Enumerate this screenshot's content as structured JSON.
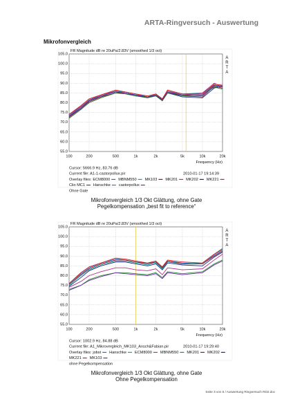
{
  "header": {
    "title": "ARTA-Ringversuch - Auswertung"
  },
  "section": "Mikrofonvergleich",
  "charts": [
    {
      "type": "line",
      "title": "FR Magnitude dB re 20uPa/2.83V (smoothed 1/3 oct)",
      "side_label": "ARTA",
      "xlabel": "Frequency (Hz)",
      "log_x": true,
      "grid": true,
      "xlim": [
        100,
        20000
      ],
      "xticks": [
        100,
        200,
        500,
        {
          "value": 1000,
          "label": "1k"
        },
        {
          "value": 2000,
          "label": "2k"
        },
        {
          "value": 5000,
          "label": "5k"
        },
        {
          "value": 10000,
          "label": "10k"
        },
        {
          "value": 20000,
          "label": "20k"
        }
      ],
      "ylim": [
        55,
        105
      ],
      "yticks": [
        {
          "value": 55,
          "label": "55.0"
        },
        {
          "value": 60,
          "label": "60.0"
        },
        {
          "value": 65,
          "label": "65.0"
        },
        {
          "value": 70,
          "label": "70.0"
        },
        {
          "value": 75,
          "label": "75.0"
        },
        {
          "value": 80,
          "label": "80.0"
        },
        {
          "value": 85,
          "label": "85.0"
        },
        {
          "value": 90,
          "label": "90.0"
        },
        {
          "value": 95,
          "label": "95.0"
        },
        {
          "value": 100,
          "label": "100.0"
        },
        {
          "value": 105,
          "label": "105.0"
        }
      ],
      "cursor": {
        "x": 5666.9,
        "y": 83.76,
        "label": "Cursor: 5666.9 Hz, 83.76 dB",
        "color": "#e8c840"
      },
      "current_file": "Current file: A1-1-castorpollux.pir",
      "timestamp": "2010-01-17  19:14:39",
      "overlay_label": "Overlay files:",
      "note": "Ohne Gate",
      "x": [
        100,
        150,
        200,
        300,
        500,
        700,
        1000,
        1500,
        2000,
        2500,
        3000,
        5000,
        10000,
        15000,
        20000
      ],
      "series": [
        {
          "name": "ECM8000",
          "color": "#2a6dd8",
          "values": [
            74,
            78,
            81,
            83.5,
            85.5,
            85,
            84,
            83,
            84,
            81.5,
            85,
            84,
            84,
            88,
            89
          ]
        },
        {
          "name": "MBNM550",
          "color": "#1aa0a0",
          "values": [
            73,
            77,
            81,
            83,
            86,
            85.5,
            84.5,
            83,
            84.5,
            82,
            86,
            84.5,
            85,
            89,
            88
          ]
        },
        {
          "name": "MK103",
          "color": "#8b1a1a",
          "values": [
            72.5,
            77,
            80.5,
            83,
            85,
            85,
            84,
            82.5,
            84,
            81,
            85.5,
            83.5,
            83,
            88.5,
            87.5
          ]
        },
        {
          "name": "MK201",
          "color": "#b0308c",
          "values": [
            73.5,
            78,
            81.5,
            84,
            86,
            85,
            84,
            83,
            84,
            82,
            86,
            84,
            85,
            90,
            88
          ]
        },
        {
          "name": "MK202",
          "color": "#1a2a8c",
          "values": [
            73,
            77.5,
            81,
            83.5,
            85.5,
            85,
            83.5,
            83,
            83.5,
            81.5,
            85,
            83,
            82.5,
            87.5,
            88.5
          ]
        },
        {
          "name": "MK221",
          "color": "#d02020",
          "values": [
            74,
            78.5,
            82,
            84,
            86.5,
            85.5,
            84.5,
            83.5,
            84.5,
            82,
            86.5,
            84.5,
            84.5,
            89.5,
            89
          ]
        },
        {
          "name": "Clio MC1",
          "color": "#1a6a2a",
          "values": [
            72,
            76.5,
            80,
            82.5,
            85,
            84.5,
            83.5,
            82.5,
            83.5,
            81,
            85,
            83.5,
            84,
            88,
            87
          ]
        },
        {
          "name": "Hanschke",
          "color": "#5a6aa0",
          "values": [
            73.5,
            77.5,
            81.5,
            83.5,
            86,
            85,
            84,
            83,
            84,
            81.5,
            85.5,
            84,
            83.5,
            89,
            88
          ]
        },
        {
          "name": "castorpollux",
          "color": "#6a2aa0",
          "values": [
            73,
            77,
            81,
            83.5,
            85.5,
            85,
            84,
            83,
            84,
            81.5,
            85.5,
            84,
            84,
            89,
            88.5
          ]
        }
      ],
      "caption": [
        "Mikrofonvergleich 1/3 Okt Glättung, ohne Gate",
        "Pegelkompensation „best fit to reference“"
      ]
    },
    {
      "type": "line",
      "title": "FR Magnitude dB re 20uPa/2.83V (smoothed 1/3 oct)",
      "side_label": "ARTA",
      "xlabel": "Frequency (Hz)",
      "log_x": true,
      "grid": true,
      "xlim": [
        100,
        20000
      ],
      "xticks": [
        100,
        200,
        500,
        {
          "value": 1000,
          "label": "1k"
        },
        {
          "value": 2000,
          "label": "2k"
        },
        {
          "value": 5000,
          "label": "5k"
        },
        {
          "value": 10000,
          "label": "10k"
        },
        {
          "value": 20000,
          "label": "20k"
        }
      ],
      "ylim": [
        55,
        105
      ],
      "yticks": [
        {
          "value": 55,
          "label": "55.0"
        },
        {
          "value": 60,
          "label": "60.0"
        },
        {
          "value": 65,
          "label": "65.0"
        },
        {
          "value": 70,
          "label": "70.0"
        },
        {
          "value": 75,
          "label": "75.0"
        },
        {
          "value": 80,
          "label": "80.0"
        },
        {
          "value": 85,
          "label": "85.0"
        },
        {
          "value": 90,
          "label": "90.0"
        },
        {
          "value": 95,
          "label": "95.0"
        },
        {
          "value": 100,
          "label": "100.0"
        },
        {
          "value": 105,
          "label": "105.0"
        }
      ],
      "cursor": {
        "x": 1002.9,
        "y": 84.88,
        "label": "Cursor: 1002.9 Hz, 84.88 dB",
        "color": "#e8c840"
      },
      "current_file": "Current file: A1_Mikrovergleich_MK103_Ansch&Fabian.pir",
      "timestamp": "2010-01-17  19:29:40",
      "overlay_label": "Overlay files:",
      "note": "ohne Pegelkompensation",
      "x": [
        100,
        150,
        200,
        300,
        500,
        700,
        1000,
        1500,
        2000,
        2500,
        3000,
        5000,
        10000,
        15000,
        20000
      ],
      "series": [
        {
          "name": "jobst",
          "color": "#2a6dd8",
          "values": [
            76,
            81,
            84,
            86.5,
            88.5,
            88,
            87,
            86.5,
            87,
            84,
            87.5,
            86.5,
            86,
            90.5,
            93
          ]
        },
        {
          "name": "Hanschke",
          "color": "#1aa0a0",
          "values": [
            75,
            80,
            83,
            85.5,
            87.5,
            87.5,
            86.5,
            85.5,
            86.5,
            83.5,
            87,
            86,
            86.5,
            91,
            94
          ]
        },
        {
          "name": "ECM8000",
          "color": "#b0308c",
          "values": [
            74,
            77,
            80,
            82,
            84,
            84,
            83,
            82.5,
            83.5,
            80.5,
            84,
            83,
            83.5,
            88,
            91
          ]
        },
        {
          "name": "MBNM550",
          "color": "#2a8a3a",
          "values": [
            73,
            75,
            78,
            80,
            81.5,
            81.5,
            81,
            80.5,
            81.5,
            79,
            82,
            81,
            82,
            86,
            88
          ]
        },
        {
          "name": "MK201",
          "color": "#8b1a1a",
          "values": [
            75.5,
            80.5,
            83.5,
            86,
            88,
            88,
            87,
            86,
            87,
            84,
            87.5,
            86,
            86,
            90,
            92.5
          ]
        },
        {
          "name": "MK202",
          "color": "#1a2a8c",
          "values": [
            74.5,
            79,
            82.5,
            85,
            87,
            87,
            86,
            85,
            86,
            83,
            86.5,
            85.5,
            85,
            89.5,
            92
          ]
        },
        {
          "name": "MK221",
          "color": "#d02020",
          "values": [
            76,
            81.5,
            84.5,
            86.5,
            89,
            88.5,
            87.5,
            86.5,
            87.5,
            84.5,
            88,
            87,
            86.5,
            91,
            93.5
          ]
        },
        {
          "name": "MK103",
          "color": "#6a2aa0",
          "values": [
            72.5,
            75,
            77.5,
            79.5,
            81.5,
            81,
            80.5,
            80,
            81,
            78.5,
            81.5,
            80.5,
            81.5,
            85.5,
            87.5
          ]
        }
      ],
      "caption": [
        "Mikrofonvergleich 1/3 Okt Glättung, ohne Gate",
        "Ohne Pegelkompensation"
      ]
    }
  ],
  "footer": "Seite 3 von 6 / Auswertung Ringversuch RD2.doc"
}
